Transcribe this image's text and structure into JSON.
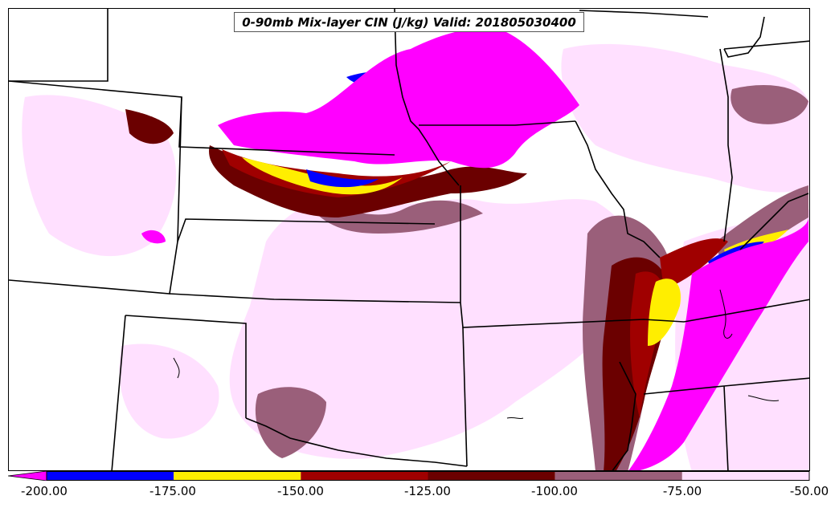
{
  "title": "0-90mb Mix-layer CIN (J/kg) Valid: 201805030400",
  "field": "CIN",
  "legend": {
    "levels": [
      {
        "min": -200,
        "max": -175,
        "color": "#0000ff"
      },
      {
        "min": -175,
        "max": -150,
        "color": "#ffee00"
      },
      {
        "min": -150,
        "max": -125,
        "color": "#a00000"
      },
      {
        "min": -125,
        "max": -100,
        "color": "#6b0000"
      },
      {
        "min": -100,
        "max": -75,
        "color": "#9a5f7a"
      },
      {
        "min": -75,
        "max": -50,
        "color": "#ffe0ff"
      }
    ],
    "below_min_color": "#ff00ff",
    "tick_labels": [
      "-200.00",
      "-175.00",
      "-150.00",
      "-125.00",
      "-100.00",
      "-75.00",
      "-50.00"
    ]
  }
}
